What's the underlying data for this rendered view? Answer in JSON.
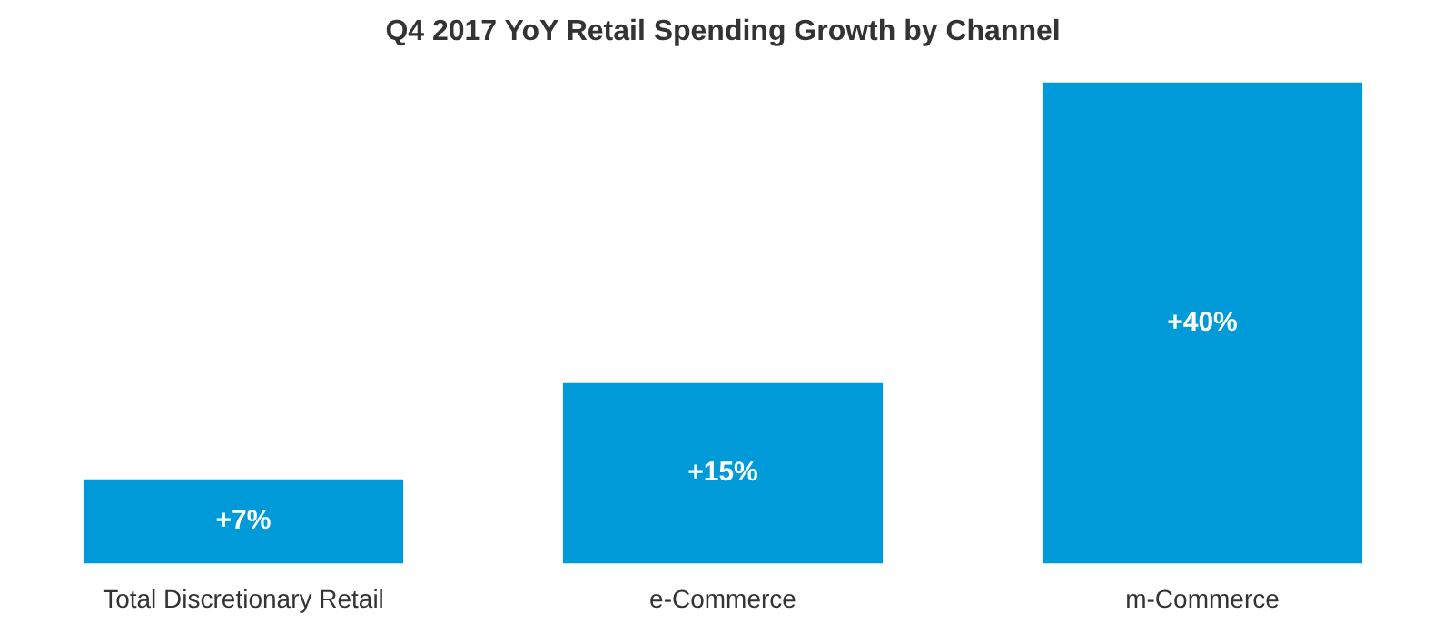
{
  "chart_data": {
    "type": "bar",
    "title": "Q4 2017 YoY Retail Spending Growth by Channel",
    "categories": [
      "Total Discretionary Retail",
      "e-Commerce",
      "m-Commerce"
    ],
    "values": [
      7,
      15,
      40
    ],
    "color": "#009ad9",
    "value_labels": [
      "+7%",
      "+15%",
      "+40%"
    ],
    "legend": false
  }
}
